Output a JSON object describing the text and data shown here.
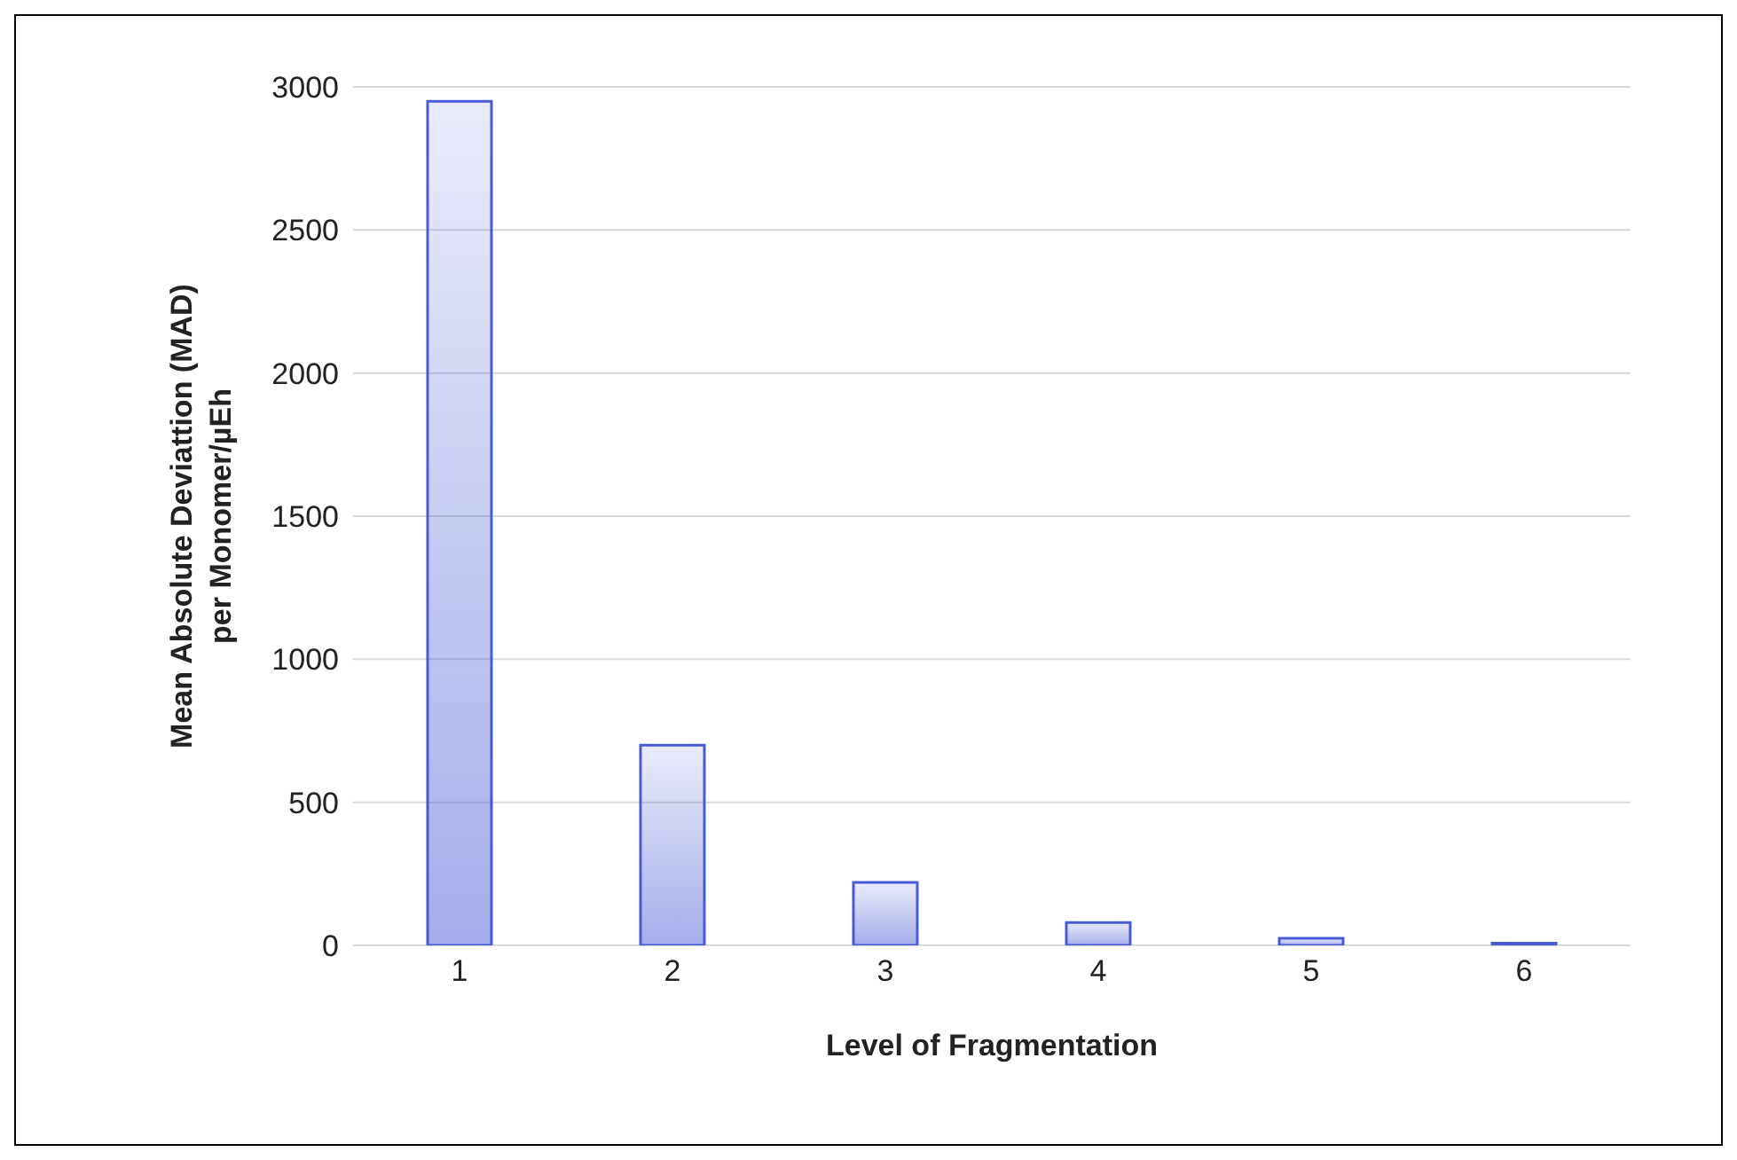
{
  "chart_data": {
    "type": "bar",
    "xlabel": "Level of Fragmentation",
    "ylabel": "Mean Absolute Deviattion (MAD)\nper Monomer/µEh",
    "categories": [
      "1",
      "2",
      "3",
      "4",
      "5",
      "6"
    ],
    "values": [
      2950,
      700,
      220,
      80,
      25,
      8
    ],
    "color": "#4a5bd6",
    "ylim": [
      0,
      3000
    ],
    "yticks": [
      0,
      500,
      1000,
      1500,
      2000,
      2500,
      3000
    ],
    "grid": "y"
  }
}
